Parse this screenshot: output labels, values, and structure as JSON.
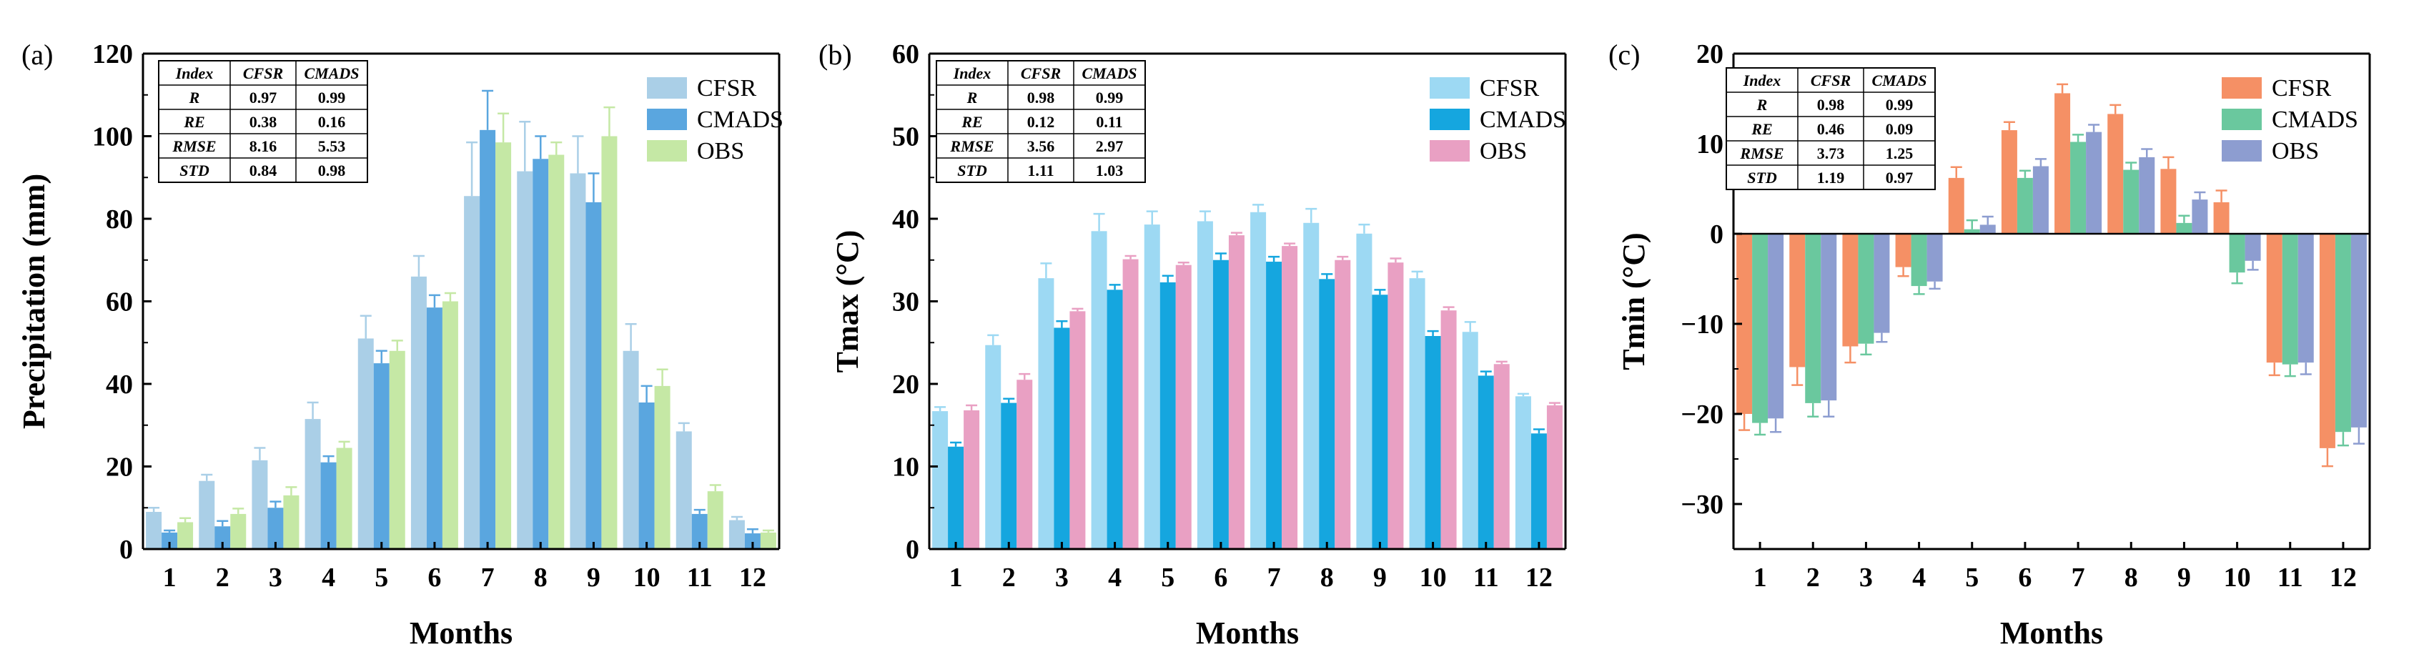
{
  "chart_data": [
    {
      "type": "bar",
      "panel_label": "(a)",
      "title": "",
      "xlabel": "Months",
      "ylabel": "Precipitation (mm)",
      "ylim": [
        0,
        120
      ],
      "yticks": [
        0,
        20,
        40,
        60,
        80,
        100,
        120
      ],
      "categories": [
        "1",
        "2",
        "3",
        "4",
        "5",
        "6",
        "7",
        "8",
        "9",
        "10",
        "11",
        "12"
      ],
      "legend_position": "top-right",
      "series": [
        {
          "name": "CFSR",
          "color": "#aacfe7",
          "values": [
            9,
            16.5,
            21.5,
            31.5,
            51,
            66,
            85.5,
            91.5,
            91,
            48,
            28.5,
            7
          ],
          "errors": [
            1,
            1.5,
            3,
            4,
            5.5,
            5,
            13,
            12,
            9,
            6.5,
            2,
            0.8
          ]
        },
        {
          "name": "CMADS",
          "color": "#5aa6df",
          "values": [
            4,
            5.5,
            10,
            21,
            45,
            58.5,
            101.5,
            94.5,
            84,
            35.5,
            8.5,
            3.8
          ],
          "errors": [
            0.5,
            1.3,
            1.5,
            1.5,
            3,
            3,
            9.5,
            5.5,
            7,
            4,
            1,
            1
          ]
        },
        {
          "name": "OBS",
          "color": "#c5e8a5",
          "values": [
            6.5,
            8.5,
            13,
            24.5,
            48,
            60,
            98.5,
            95.5,
            100,
            39.5,
            14,
            4
          ],
          "errors": [
            1,
            1.3,
            2,
            1.5,
            2.5,
            2,
            7,
            3,
            7,
            4,
            1.5,
            0.5
          ]
        }
      ],
      "stats_table": {
        "headers": [
          "Index",
          "CFSR",
          "CMADS"
        ],
        "rows": [
          [
            "R",
            "0.97",
            "0.99"
          ],
          [
            "RE",
            "0.38",
            "0.16"
          ],
          [
            "RMSE",
            "8.16",
            "5.53"
          ],
          [
            "STD",
            "0.84",
            "0.98"
          ]
        ]
      }
    },
    {
      "type": "bar",
      "panel_label": "(b)",
      "title": "",
      "xlabel": "Months",
      "ylabel": "Tmax (°C)",
      "ylim": [
        0,
        60
      ],
      "yticks": [
        0,
        10,
        20,
        30,
        40,
        50,
        60
      ],
      "categories": [
        "1",
        "2",
        "3",
        "4",
        "5",
        "6",
        "7",
        "8",
        "9",
        "10",
        "11",
        "12"
      ],
      "legend_position": "top-right",
      "series": [
        {
          "name": "CFSR",
          "color": "#9dd9f3",
          "values": [
            16.7,
            24.7,
            32.8,
            38.5,
            39.3,
            39.7,
            40.8,
            39.5,
            38.2,
            32.8,
            26.3,
            18.5
          ],
          "errors": [
            0.5,
            1.2,
            1.8,
            2.1,
            1.6,
            1.2,
            0.9,
            1.7,
            1.1,
            0.8,
            1.2,
            0.3
          ]
        },
        {
          "name": "CMADS",
          "color": "#15a6df",
          "values": [
            12.4,
            17.7,
            26.8,
            31.4,
            32.3,
            35.0,
            34.8,
            32.7,
            30.8,
            25.8,
            21.0,
            14.0
          ],
          "errors": [
            0.5,
            0.5,
            0.8,
            0.6,
            0.8,
            0.8,
            0.6,
            0.6,
            0.6,
            0.6,
            0.5,
            0.5
          ]
        },
        {
          "name": "OBS",
          "color": "#e9a0c3",
          "values": [
            16.8,
            20.5,
            28.8,
            35.1,
            34.4,
            38.0,
            36.7,
            35.0,
            34.7,
            28.9,
            22.4,
            17.4
          ],
          "errors": [
            0.6,
            0.7,
            0.3,
            0.4,
            0.3,
            0.3,
            0.3,
            0.4,
            0.5,
            0.4,
            0.3,
            0.3
          ]
        }
      ],
      "stats_table": {
        "headers": [
          "Index",
          "CFSR",
          "CMADS"
        ],
        "rows": [
          [
            "R",
            "0.98",
            "0.99"
          ],
          [
            "RE",
            "0.12",
            "0.11"
          ],
          [
            "RMSE",
            "3.56",
            "2.97"
          ],
          [
            "STD",
            "1.11",
            "1.03"
          ]
        ]
      }
    },
    {
      "type": "bar",
      "panel_label": "(c)",
      "title": "",
      "xlabel": "Months",
      "ylabel": "Tmin (°C)",
      "ylim": [
        -35,
        20
      ],
      "yticks": [
        -30,
        -20,
        -10,
        0,
        10,
        20
      ],
      "categories": [
        "1",
        "2",
        "3",
        "4",
        "5",
        "6",
        "7",
        "8",
        "9",
        "10",
        "11",
        "12"
      ],
      "legend_position": "top-right",
      "series": [
        {
          "name": "CFSR",
          "color": "#f59065",
          "values": [
            -20.0,
            -14.8,
            -12.5,
            -3.7,
            6.2,
            11.5,
            15.6,
            13.3,
            7.2,
            3.5,
            -14.3,
            -23.8
          ],
          "errors": [
            1.8,
            2.0,
            1.8,
            1.0,
            1.2,
            0.9,
            1.0,
            1.0,
            1.3,
            1.3,
            1.4,
            2.0
          ]
        },
        {
          "name": "CMADS",
          "color": "#6ac89e",
          "values": [
            -21.0,
            -18.8,
            -12.2,
            -5.8,
            0.5,
            6.2,
            10.2,
            7.1,
            1.2,
            -4.3,
            -14.5,
            -22.0
          ],
          "errors": [
            1.3,
            1.5,
            1.2,
            0.9,
            1.0,
            0.8,
            0.8,
            0.8,
            0.8,
            1.2,
            1.3,
            1.5
          ]
        },
        {
          "name": "OBS",
          "color": "#8d9dd0",
          "values": [
            -20.5,
            -18.5,
            -11.0,
            -5.3,
            1.0,
            7.5,
            11.3,
            8.5,
            3.8,
            -3.0,
            -14.3,
            -21.5
          ],
          "errors": [
            1.5,
            1.8,
            1.0,
            0.8,
            0.9,
            0.8,
            0.8,
            0.9,
            0.8,
            1.0,
            1.3,
            1.8
          ]
        }
      ],
      "stats_table": {
        "headers": [
          "Index",
          "CFSR",
          "CMADS"
        ],
        "rows": [
          [
            "R",
            "0.98",
            "0.99"
          ],
          [
            "RE",
            "0.46",
            "0.09"
          ],
          [
            "RMSE",
            "3.73",
            "1.25"
          ],
          [
            "STD",
            "1.19",
            "0.97"
          ]
        ]
      }
    }
  ]
}
